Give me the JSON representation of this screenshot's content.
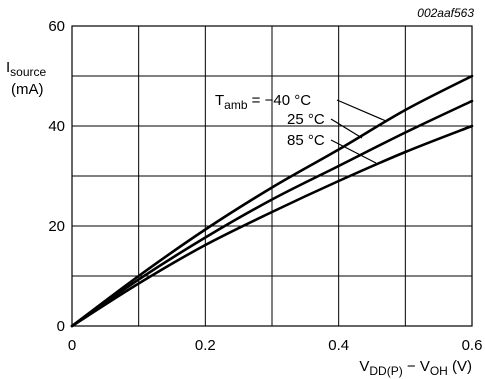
{
  "figure_id": "002aaf563",
  "chart_data": {
    "type": "line",
    "ylabel_main": "I",
    "ylabel_sub": "source",
    "ylabel_unit": "(mA)",
    "xlabel_parts": [
      {
        "t": "V",
        "sub": false
      },
      {
        "t": "DD(P)",
        "sub": true
      },
      {
        "t": " − V",
        "sub": false
      },
      {
        "t": "OH",
        "sub": true
      },
      {
        "t": " (V)",
        "sub": false
      }
    ],
    "xlim": [
      0,
      0.6
    ],
    "ylim": [
      0,
      60
    ],
    "x_ticks": [
      "0",
      "0.2",
      "0.4",
      "0.6"
    ],
    "x_tick_values": [
      0,
      0.2,
      0.4,
      0.6
    ],
    "y_ticks": [
      "0",
      "20",
      "40",
      "60"
    ],
    "y_tick_values": [
      0,
      20,
      40,
      60
    ],
    "x_grid": [
      0,
      0.1,
      0.2,
      0.3,
      0.4,
      0.5,
      0.6
    ],
    "y_grid": [
      0,
      10,
      20,
      30,
      40,
      50,
      60
    ],
    "grid": true,
    "series": [
      {
        "name": "T_amb = −40 °C",
        "label_main": "T",
        "label_sub": "amb",
        "label_rest": " = −40 °C",
        "x": [
          0,
          0.1,
          0.2,
          0.3,
          0.4,
          0.5,
          0.6
        ],
        "y": [
          0,
          10,
          19.3,
          27.7,
          35.3,
          43.2,
          50
        ]
      },
      {
        "name": "25 °C",
        "label_main": "25 °C",
        "x": [
          0,
          0.1,
          0.2,
          0.3,
          0.4,
          0.5,
          0.6
        ],
        "y": [
          0,
          9.3,
          17.7,
          25.3,
          32,
          38.7,
          45
        ]
      },
      {
        "name": "85 °C",
        "label_main": "85 °C",
        "x": [
          0,
          0.1,
          0.2,
          0.3,
          0.4,
          0.5,
          0.6
        ],
        "y": [
          0,
          8.5,
          16.2,
          22.8,
          29,
          34.8,
          40
        ]
      }
    ]
  }
}
